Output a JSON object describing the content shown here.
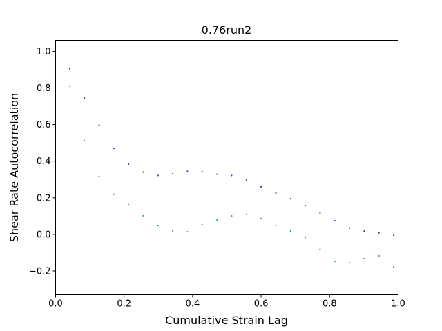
{
  "chart_data": {
    "type": "scatter",
    "title": "0.76run2",
    "xlabel": "Cumulative Strain Lag",
    "ylabel": "Shear Rate Autocorrelation",
    "xlim": [
      0.0,
      1.0
    ],
    "ylim": [
      -0.33,
      1.06
    ],
    "xticks": [
      0.0,
      0.2,
      0.4,
      0.6,
      0.8,
      1.0
    ],
    "xtick_labels": [
      "0.0",
      "0.2",
      "0.4",
      "0.6",
      "0.8",
      "1.0"
    ],
    "yticks": [
      -0.2,
      0.0,
      0.2,
      0.4,
      0.6,
      0.8,
      1.0
    ],
    "ytick_labels": [
      "−0.2",
      "0.0",
      "0.2",
      "0.4",
      "0.6",
      "0.8",
      "1.0"
    ],
    "grid": false,
    "series": [
      {
        "color": "#4b3fb5",
        "points": [
          [
            0.041,
            0.905
          ],
          [
            0.084,
            0.745
          ],
          [
            0.127,
            0.597
          ],
          [
            0.17,
            0.47
          ],
          [
            0.213,
            0.384
          ],
          [
            0.256,
            0.34
          ],
          [
            0.299,
            0.322
          ],
          [
            0.342,
            0.331
          ],
          [
            0.385,
            0.345
          ],
          [
            0.428,
            0.343
          ],
          [
            0.471,
            0.329
          ],
          [
            0.514,
            0.322
          ],
          [
            0.557,
            0.298
          ],
          [
            0.6,
            0.26
          ],
          [
            0.643,
            0.226
          ],
          [
            0.686,
            0.195
          ],
          [
            0.729,
            0.158
          ],
          [
            0.772,
            0.117
          ],
          [
            0.815,
            0.075
          ],
          [
            0.858,
            0.034
          ],
          [
            0.901,
            0.018
          ],
          [
            0.944,
            0.008
          ],
          [
            0.987,
            -0.004
          ]
        ]
      },
      {
        "color": "#2ca58d",
        "points": [
          [
            0.041,
            0.81
          ],
          [
            0.084,
            0.512
          ],
          [
            0.127,
            0.317
          ],
          [
            0.17,
            0.219
          ],
          [
            0.213,
            0.162
          ],
          [
            0.256,
            0.102
          ],
          [
            0.299,
            0.048
          ],
          [
            0.342,
            0.019
          ],
          [
            0.385,
            0.014
          ],
          [
            0.428,
            0.053
          ],
          [
            0.471,
            0.079
          ],
          [
            0.514,
            0.101
          ],
          [
            0.557,
            0.11
          ],
          [
            0.6,
            0.087
          ],
          [
            0.643,
            0.049
          ],
          [
            0.686,
            0.018
          ],
          [
            0.729,
            -0.017
          ],
          [
            0.772,
            -0.082
          ],
          [
            0.815,
            -0.148
          ],
          [
            0.858,
            -0.155
          ],
          [
            0.901,
            -0.132
          ],
          [
            0.944,
            -0.117
          ],
          [
            0.987,
            -0.177
          ]
        ]
      }
    ]
  }
}
